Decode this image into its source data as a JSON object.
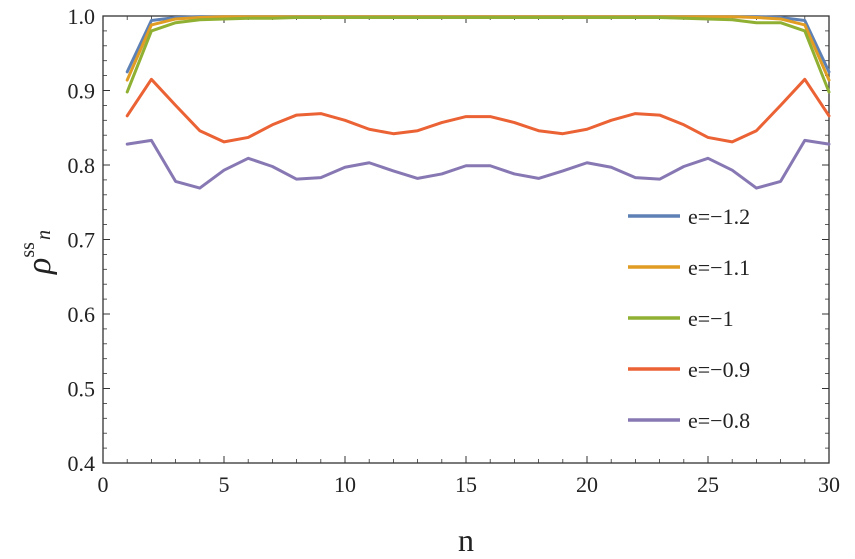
{
  "chart_data": {
    "type": "line",
    "xlabel": "n",
    "ylabel": {
      "base": "ρ",
      "superscript": "ss",
      "subscript": "n"
    },
    "xlim": [
      0,
      30
    ],
    "ylim": [
      0.4,
      1.0
    ],
    "x_ticks": [
      0,
      5,
      10,
      15,
      20,
      25,
      30
    ],
    "y_ticks": [
      0.4,
      0.5,
      0.6,
      0.7,
      0.8,
      0.9,
      1.0
    ],
    "x_tick_labels": [
      "0",
      "5",
      "10",
      "15",
      "20",
      "25",
      "30"
    ],
    "y_tick_labels": [
      "0.4",
      "0.5",
      "0.6",
      "0.7",
      "0.8",
      "0.9",
      "1.0"
    ],
    "grid": false,
    "legend_position": "right",
    "x": [
      1,
      2,
      3,
      4,
      5,
      6,
      7,
      8,
      9,
      10,
      11,
      12,
      13,
      14,
      15,
      16,
      17,
      18,
      19,
      20,
      21,
      22,
      23,
      24,
      25,
      26,
      27,
      28,
      29,
      30
    ],
    "series": [
      {
        "name": "e=−1.2",
        "color": "#5e81b5",
        "values": [
          0.925,
          0.994,
          0.998,
          0.999,
          0.999,
          0.999,
          0.999,
          0.999,
          0.999,
          0.999,
          0.999,
          0.999,
          0.999,
          0.999,
          0.999,
          0.999,
          0.999,
          0.999,
          0.999,
          0.999,
          0.999,
          0.999,
          0.999,
          0.999,
          0.999,
          0.999,
          0.999,
          0.998,
          0.994,
          0.925
        ]
      },
      {
        "name": "e=−1.1",
        "color": "#e19c24",
        "values": [
          0.914,
          0.988,
          0.996,
          0.998,
          0.999,
          0.999,
          0.999,
          0.999,
          0.999,
          0.999,
          0.999,
          0.999,
          0.999,
          0.999,
          0.999,
          0.999,
          0.999,
          0.999,
          0.999,
          0.999,
          0.999,
          0.999,
          0.999,
          0.999,
          0.999,
          0.999,
          0.998,
          0.996,
          0.988,
          0.914
        ]
      },
      {
        "name": "e=−1",
        "color": "#8fb032",
        "values": [
          0.898,
          0.98,
          0.991,
          0.995,
          0.996,
          0.997,
          0.997,
          0.998,
          0.998,
          0.998,
          0.998,
          0.998,
          0.998,
          0.998,
          0.998,
          0.998,
          0.998,
          0.998,
          0.998,
          0.998,
          0.998,
          0.998,
          0.998,
          0.997,
          0.996,
          0.995,
          0.991,
          0.991,
          0.98,
          0.898
        ]
      },
      {
        "name": "e=−0.9",
        "color": "#eb6235",
        "values": [
          0.866,
          0.915,
          0.88,
          0.846,
          0.831,
          0.837,
          0.854,
          0.867,
          0.869,
          0.86,
          0.848,
          0.842,
          0.846,
          0.857,
          0.865,
          0.865,
          0.857,
          0.846,
          0.842,
          0.848,
          0.86,
          0.869,
          0.867,
          0.854,
          0.837,
          0.831,
          0.846,
          0.88,
          0.915,
          0.866
        ]
      },
      {
        "name": "e=−0.8",
        "color": "#8778b3",
        "values": [
          0.828,
          0.833,
          0.778,
          0.769,
          0.793,
          0.809,
          0.798,
          0.781,
          0.783,
          0.797,
          0.803,
          0.792,
          0.782,
          0.788,
          0.799,
          0.799,
          0.788,
          0.782,
          0.792,
          0.803,
          0.797,
          0.783,
          0.781,
          0.798,
          0.809,
          0.793,
          0.769,
          0.778,
          0.833,
          0.828
        ]
      }
    ]
  }
}
